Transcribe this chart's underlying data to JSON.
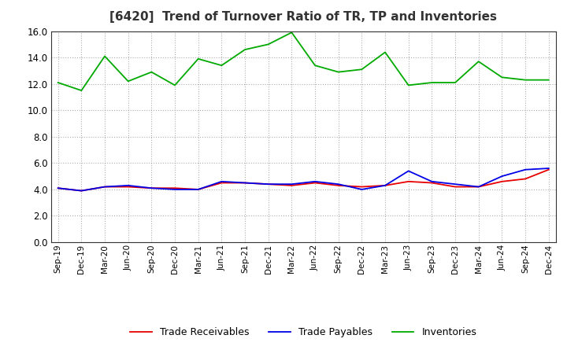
{
  "title": "[6420]  Trend of Turnover Ratio of TR, TP and Inventories",
  "labels": [
    "Sep-19",
    "Dec-19",
    "Mar-20",
    "Jun-20",
    "Sep-20",
    "Dec-20",
    "Mar-21",
    "Jun-21",
    "Sep-21",
    "Dec-21",
    "Mar-22",
    "Jun-22",
    "Sep-22",
    "Dec-22",
    "Mar-23",
    "Jun-23",
    "Sep-23",
    "Dec-23",
    "Mar-24",
    "Jun-24",
    "Sep-24",
    "Dec-24"
  ],
  "trade_receivables": [
    4.1,
    3.9,
    4.2,
    4.2,
    4.1,
    4.1,
    4.0,
    4.5,
    4.5,
    4.4,
    4.3,
    4.5,
    4.3,
    4.2,
    4.3,
    4.6,
    4.5,
    4.2,
    4.2,
    4.6,
    4.8,
    5.5
  ],
  "trade_payables": [
    4.1,
    3.9,
    4.2,
    4.3,
    4.1,
    4.0,
    4.0,
    4.6,
    4.5,
    4.4,
    4.4,
    4.6,
    4.4,
    4.0,
    4.3,
    5.4,
    4.6,
    4.4,
    4.2,
    5.0,
    5.5,
    5.6
  ],
  "inventories": [
    12.1,
    11.5,
    14.1,
    12.2,
    12.9,
    11.9,
    13.9,
    13.4,
    14.6,
    15.0,
    15.9,
    13.4,
    12.9,
    13.1,
    14.4,
    11.9,
    12.1,
    12.1,
    13.7,
    12.5,
    12.3,
    12.3
  ],
  "tr_color": "#e80000",
  "tp_color": "#0000e8",
  "inv_color": "#00aa00",
  "ylim": [
    0.0,
    16.0
  ],
  "yticks": [
    0.0,
    2.0,
    4.0,
    6.0,
    8.0,
    10.0,
    12.0,
    14.0,
    16.0
  ],
  "background_color": "#ffffff",
  "grid_color": "#999999",
  "legend_labels": [
    "Trade Receivables",
    "Trade Payables",
    "Inventories"
  ]
}
